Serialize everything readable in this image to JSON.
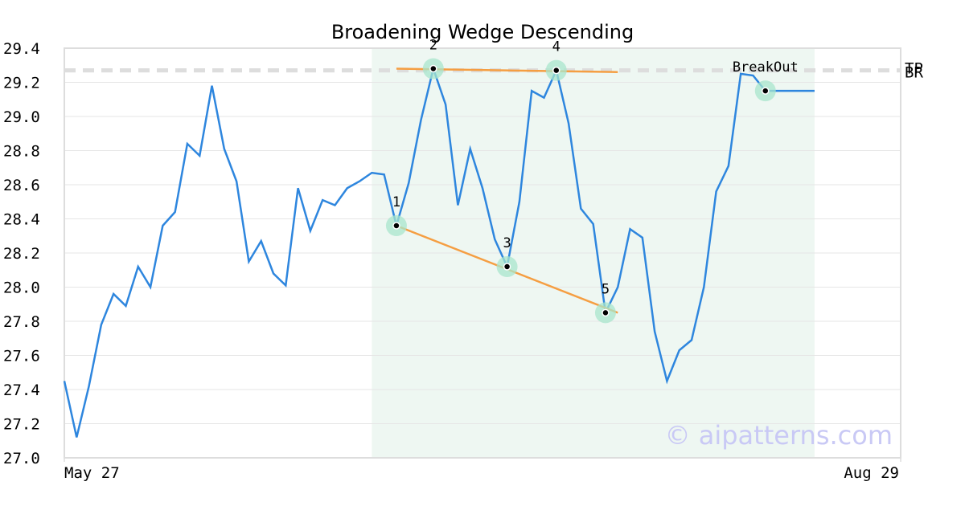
{
  "chart_data": {
    "type": "line",
    "title": "Broadening Wedge Descending",
    "watermark": "© aipatterns.com",
    "x": [
      0,
      1,
      2,
      3,
      4,
      5,
      6,
      7,
      8,
      9,
      10,
      11,
      12,
      13,
      14,
      15,
      16,
      17,
      18,
      19,
      20,
      21,
      22,
      23,
      24,
      25,
      26,
      27,
      28,
      29,
      30,
      31,
      32,
      33,
      34,
      35,
      36,
      37,
      38,
      39,
      40,
      41,
      42,
      43,
      44,
      45,
      46,
      47,
      48,
      49,
      50,
      51,
      52,
      53,
      54,
      55,
      56,
      57,
      58,
      59,
      60,
      61
    ],
    "xlim": [
      0,
      68
    ],
    "xticks": [
      {
        "value": 0,
        "label": "May 27"
      },
      {
        "value": 68,
        "label": "Aug 29"
      }
    ],
    "series": [
      {
        "color": "#2e86de",
        "values": [
          27.45,
          27.12,
          27.42,
          27.78,
          27.96,
          27.89,
          28.12,
          28.0,
          28.36,
          28.44,
          28.84,
          28.77,
          29.18,
          28.81,
          28.62,
          28.15,
          28.27,
          28.08,
          28.01,
          28.58,
          28.33,
          28.51,
          28.48,
          28.58,
          28.62,
          28.67,
          28.66,
          28.36,
          28.61,
          28.98,
          29.28,
          29.07,
          28.48,
          28.81,
          28.58,
          28.28,
          28.12,
          28.5,
          29.15,
          29.11,
          29.27,
          28.96,
          28.46,
          28.37,
          27.85,
          28.0,
          28.34,
          28.29,
          27.74,
          27.45,
          27.63,
          27.69,
          28.0,
          28.56,
          28.71,
          29.25,
          29.24,
          29.15,
          29.15,
          29.15,
          29.15,
          29.15
        ]
      }
    ],
    "ylim": [
      27.0,
      29.4
    ],
    "yticks": [
      {
        "value": 27.0,
        "label": "27.0"
      },
      27.2,
      27.4,
      27.6,
      27.8,
      {
        "value": 28.0,
        "label": "28.0"
      },
      28.2,
      28.4,
      28.6,
      28.8,
      {
        "value": 29.0,
        "label": "29.0"
      },
      29.2,
      29.4
    ],
    "grid": true,
    "highlight_xlim": [
      25,
      61
    ],
    "highlight_color": "#eef7f2",
    "points": [
      {
        "label": "1",
        "x": 27,
        "value": 28.36
      },
      {
        "label": "2",
        "x": 30,
        "value": 29.28
      },
      {
        "label": "3",
        "x": 36,
        "value": 28.12
      },
      {
        "label": "4",
        "x": 40,
        "value": 29.27
      },
      {
        "label": "5",
        "x": 44,
        "value": 27.85
      },
      {
        "label": "BreakOut",
        "x": 57,
        "value": 29.15
      }
    ],
    "trendlines": [
      {
        "x": [
          27,
          45
        ],
        "values": [
          29.28,
          29.26
        ],
        "color": "#f59e42"
      },
      {
        "x": [
          27,
          45
        ],
        "values": [
          28.36,
          27.85
        ],
        "color": "#f59e42"
      }
    ],
    "levels": [
      {
        "label": "TP",
        "value": 29.27
      },
      {
        "label": "BR",
        "value": 29.27
      }
    ]
  }
}
